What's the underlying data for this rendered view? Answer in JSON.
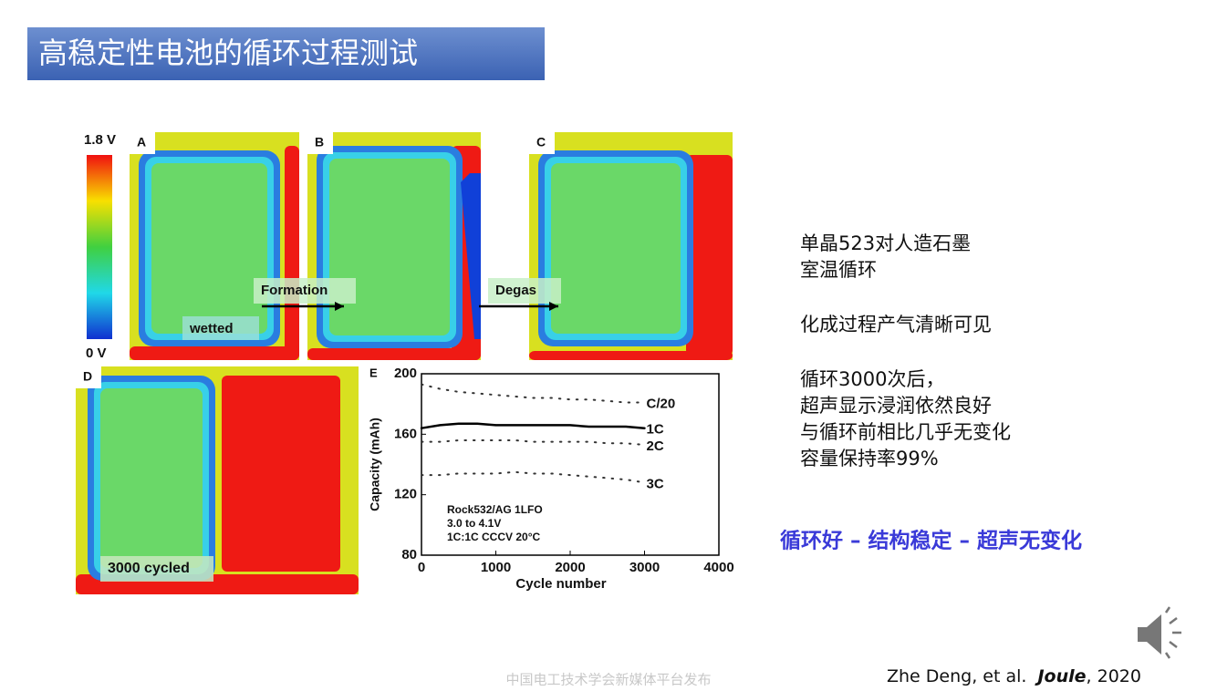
{
  "header": {
    "title": "高稳定性电池的循环过程测试"
  },
  "figure": {
    "colorbar": {
      "max_label": "1.8 V",
      "min_label": "0 V"
    },
    "panels": [
      {
        "letter": "A",
        "label": "wetted"
      },
      {
        "letter": "B"
      },
      {
        "letter": "C"
      },
      {
        "letter": "D",
        "label": "3000 cycled"
      }
    ],
    "arrows": [
      "Formation",
      "Degas"
    ],
    "chart_e": {
      "type": "line",
      "letter": "E",
      "x_label": "Cycle number",
      "y_label": "Capacity (mAh)",
      "annotation": [
        "Rock532/AG 1LFO",
        "3.0 to 4.1V",
        "1C:1C CCCV 20°C"
      ],
      "x": [
        0,
        250,
        500,
        750,
        1000,
        1250,
        1500,
        1750,
        2000,
        2250,
        2500,
        2750,
        3000
      ],
      "series": [
        {
          "name": "C/20",
          "color": "#333333",
          "style": "dotted",
          "values": [
            193,
            190,
            188,
            187,
            186,
            185,
            184,
            184,
            183,
            183,
            182,
            181,
            181
          ]
        },
        {
          "name": "1C",
          "color": "#000000",
          "style": "solid",
          "values": [
            164,
            166,
            167,
            167,
            166,
            166,
            166,
            166,
            166,
            165,
            165,
            165,
            164
          ]
        },
        {
          "name": "2C",
          "color": "#333333",
          "style": "dotted",
          "values": [
            155,
            155,
            156,
            156,
            156,
            156,
            155,
            155,
            155,
            155,
            154,
            154,
            153
          ]
        },
        {
          "name": "3C",
          "color": "#333333",
          "style": "dotted",
          "values": [
            133,
            133,
            134,
            134,
            134,
            135,
            134,
            134,
            133,
            132,
            131,
            130,
            128
          ]
        }
      ],
      "xlim": [
        0,
        4000
      ],
      "xticks": [
        0,
        1000,
        2000,
        3000,
        4000
      ],
      "ylim": [
        80,
        200
      ],
      "yticks": [
        80,
        120,
        160,
        200
      ]
    }
  },
  "notes": [
    [
      "单晶523对人造石墨",
      "室温循环"
    ],
    [
      "化成过程产气清晰可见"
    ],
    [
      "循环3000次后，",
      "超声显示浸润依然良好",
      "与循环前相比几乎无变化",
      "容量保持率99%"
    ]
  ],
  "highlight": "循环好 – 结构稳定 – 超声无变化",
  "citation": {
    "authors": "Zhe Deng, et al.",
    "journal": "Joule",
    "year": ", 2020"
  },
  "footer": "中国电工技术学会新媒体平台发布"
}
